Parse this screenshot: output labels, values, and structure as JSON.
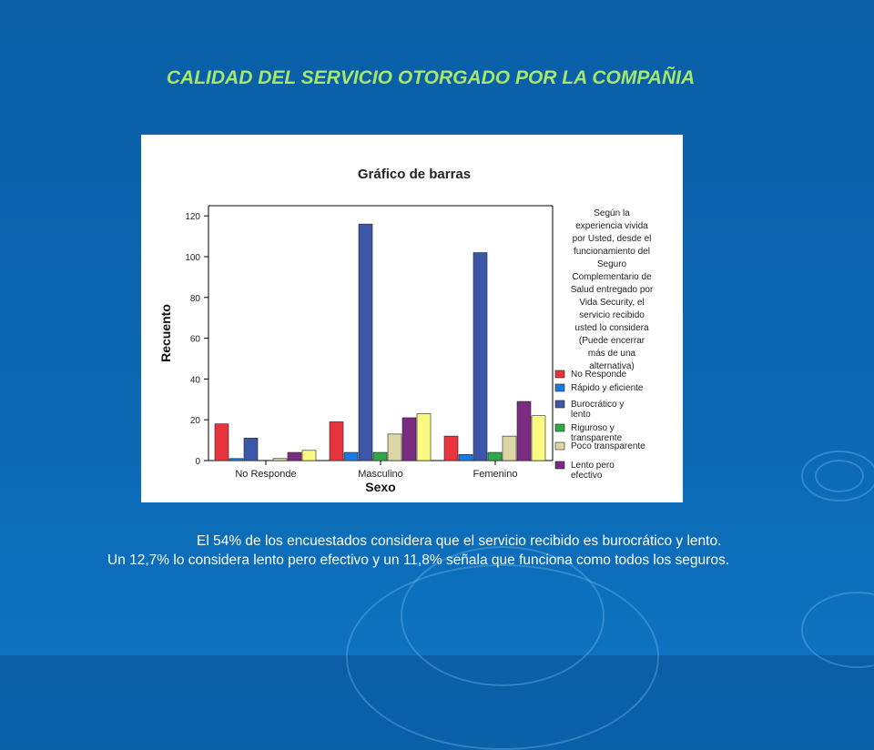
{
  "slide": {
    "title": "CALIDAD DEL SERVICIO OTORGADO POR LA COMPAÑIA",
    "caption": "El  54% de los encuestados considera que el servicio recibido es burocrático y lento. Un 12,7% lo considera lento pero efectivo y un 11,8% señala que funciona como todos los seguros.",
    "title_color": "#a6e66a",
    "background_color": "#0b66b0"
  },
  "chart_data": {
    "type": "bar",
    "title": "Gráfico de barras",
    "xlabel": "Sexo",
    "ylabel": "Recuento",
    "ylim": [
      0,
      125
    ],
    "yticks": [
      0,
      20,
      40,
      60,
      80,
      100,
      120
    ],
    "grid": false,
    "legend_position": "right",
    "legend_title": [
      "Según la",
      "experiencia vivida",
      "por Usted, desde el",
      "funcionamiento del",
      "Seguro",
      "Complementario de",
      "Salud entregado por",
      "Vida Security, el",
      "servicio recibido",
      "usted lo considera",
      "(Puede encerrar",
      "más de una",
      "alternativa)"
    ],
    "categories": [
      "No Responde",
      "Masculino",
      "Femenino"
    ],
    "series": [
      {
        "name": "No Responde",
        "color": "#e8343c",
        "values": [
          18,
          19,
          12
        ]
      },
      {
        "name": "Rápido y eficiente",
        "color": "#1a7ae0",
        "values": [
          1,
          4,
          3
        ]
      },
      {
        "name": "Burocrático y lento",
        "color": "#3c57a8",
        "values": [
          11,
          116,
          102
        ]
      },
      {
        "name": "Riguroso y transparente",
        "color": "#2fa84a",
        "values": [
          0,
          4,
          4
        ]
      },
      {
        "name": "Poco transparente",
        "color": "#dcd6a6",
        "values": [
          1,
          13,
          12
        ]
      },
      {
        "name": "Lento pero efectivo",
        "color": "#7a2c80",
        "values": [
          4,
          21,
          29
        ]
      },
      {
        "name": "",
        "color": "#fafa82",
        "values": [
          5,
          23,
          22
        ]
      }
    ]
  }
}
